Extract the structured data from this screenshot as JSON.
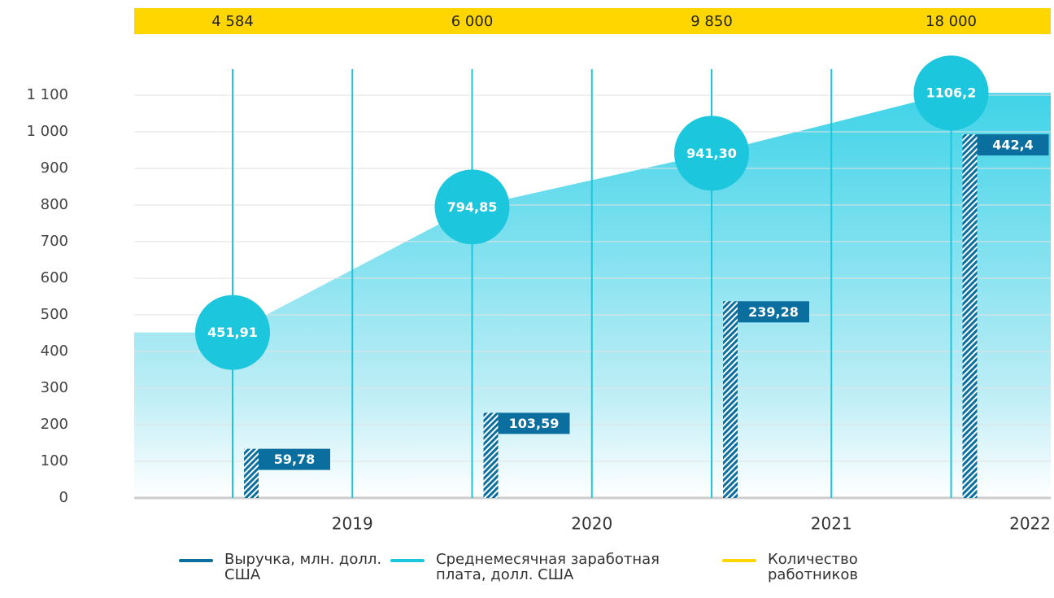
{
  "chart_data": {
    "type": "area-bar",
    "categories": [
      "2019",
      "2020",
      "2021",
      "2022"
    ],
    "series": [
      {
        "name": "Выручка, млн. долл. США",
        "color": "#0a6e9e",
        "axis": "y2",
        "values": [
          59.78,
          103.59,
          239.28,
          442.4
        ],
        "value_labels": [
          "59,78",
          "103,59",
          "239,28",
          "442,4"
        ]
      },
      {
        "name": "Среднемесячная заработная плата, долл. США",
        "color": "#1cc6dc",
        "values": [
          451.91,
          794.85,
          941.3,
          1106.2
        ],
        "value_labels": [
          "451,91",
          "794,85",
          "941,30",
          "1106,2"
        ]
      },
      {
        "name": "Количество работников",
        "color": "#ffd600",
        "values": [
          4584,
          6000,
          9850,
          18000
        ],
        "value_labels": [
          "4 584",
          "6 000",
          "9 850",
          "18 000"
        ]
      }
    ],
    "ylim": [
      0,
      1100
    ],
    "yticks": [
      0,
      100,
      200,
      300,
      400,
      500,
      600,
      700,
      800,
      900,
      {
        "value": 1000,
        "label": "1 000"
      },
      {
        "value": 1100,
        "label": "1 100"
      }
    ],
    "y2lim": [
      0,
      490
    ],
    "grid": true
  }
}
